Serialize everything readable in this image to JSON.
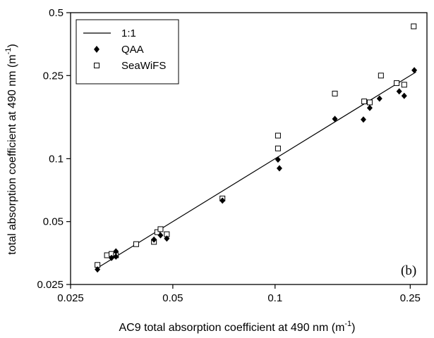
{
  "chart_data": {
    "type": "scatter",
    "xlabel": "AC9 total absorption coefficient at 490 nm",
    "xlabel_unit_base": "(m",
    "xlabel_unit_exp": "-1",
    "xlabel_unit_close": ")",
    "ylabel": "total absorption coefficient at 490 nm",
    "ylabel_unit_base": "(m",
    "ylabel_unit_exp": "-1",
    "ylabel_unit_close": ")",
    "xscale": "log",
    "yscale": "log",
    "xlim": [
      0.025,
      0.28
    ],
    "ylim": [
      0.025,
      0.5
    ],
    "xticks": [
      0.025,
      0.05,
      0.1,
      0.25
    ],
    "xtick_labels": [
      "0.025",
      "0.05",
      "0.1",
      "0.25"
    ],
    "yticks": [
      0.025,
      0.05,
      0.1,
      0.25,
      0.5
    ],
    "ytick_labels": [
      "0.025",
      "0.05",
      "0.1",
      "0.25",
      "0.5"
    ],
    "grid": false,
    "legend_position": "top-left",
    "panel_label": "(b)",
    "series": [
      {
        "name": "1:1",
        "kind": "line",
        "x": [
          0.03,
          0.26
        ],
        "y": [
          0.03,
          0.26
        ]
      },
      {
        "name": "QAA",
        "kind": "filled-diamond",
        "x": [
          0.03,
          0.033,
          0.034,
          0.034,
          0.044,
          0.046,
          0.048,
          0.07,
          0.102,
          0.103,
          0.15,
          0.182,
          0.19,
          0.203,
          0.232,
          0.24,
          0.257
        ],
        "y": [
          0.0295,
          0.0335,
          0.036,
          0.034,
          0.041,
          0.043,
          0.0415,
          0.063,
          0.099,
          0.09,
          0.155,
          0.154,
          0.175,
          0.194,
          0.21,
          0.2,
          0.265
        ]
      },
      {
        "name": "SeaWiFS",
        "kind": "open-square",
        "x": [
          0.03,
          0.032,
          0.033,
          0.034,
          0.039,
          0.044,
          0.045,
          0.046,
          0.048,
          0.07,
          0.102,
          0.102,
          0.15,
          0.183,
          0.19,
          0.205,
          0.228,
          0.24,
          0.256
        ],
        "y": [
          0.031,
          0.0345,
          0.035,
          0.0345,
          0.039,
          0.04,
          0.0445,
          0.046,
          0.0435,
          0.0645,
          0.112,
          0.129,
          0.205,
          0.188,
          0.186,
          0.25,
          0.23,
          0.226,
          0.43
        ]
      }
    ]
  }
}
